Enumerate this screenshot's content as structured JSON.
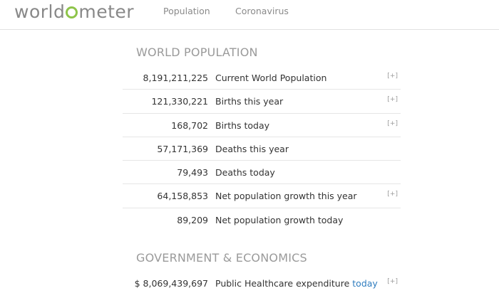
{
  "header": {
    "logo_pre": "world",
    "logo_post": "meter",
    "nav": [
      "Population",
      "Coronavirus"
    ]
  },
  "sections": {
    "world_population": {
      "title": "WORLD POPULATION",
      "rows": [
        {
          "value": "8,191,211,225",
          "label": "Current World Population",
          "expand": "[+]"
        },
        {
          "value": "121,330,221",
          "label": "Births this year",
          "expand": "[+]"
        },
        {
          "value": "168,702",
          "label": "Births today",
          "expand": "[+]"
        },
        {
          "value": "57,171,369",
          "label": "Deaths this year",
          "expand": ""
        },
        {
          "value": "79,493",
          "label": "Deaths today",
          "expand": ""
        },
        {
          "value": "64,158,853",
          "label": "Net population growth this year",
          "expand": "[+]"
        },
        {
          "value": "89,209",
          "label": "Net population growth today",
          "expand": ""
        }
      ]
    },
    "government_economics": {
      "title": "GOVERNMENT & ECONOMICS",
      "rows": [
        {
          "value": "$ 8,069,439,697",
          "label": "Public Healthcare expenditure",
          "link": "today",
          "expand": "[+]"
        }
      ]
    }
  },
  "colors": {
    "logo_accent": "#8ec44a",
    "link": "#2f7dbf"
  }
}
